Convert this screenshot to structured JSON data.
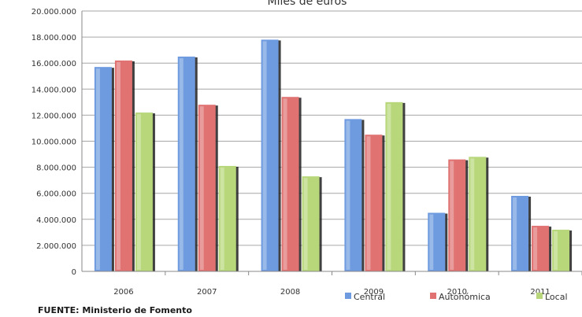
{
  "chart_data": {
    "type": "bar",
    "title": "Miles de euros",
    "source": "FUENTE: Ministerio de Fomento",
    "categories": [
      "2006",
      "2007",
      "2008",
      "2009",
      "2010",
      "2011"
    ],
    "series": [
      {
        "name": "Central",
        "color": "#6e9be0",
        "values": [
          15700000,
          16500000,
          17800000,
          11700000,
          4500000,
          5800000
        ]
      },
      {
        "name": "Autonómica",
        "color": "#e07272",
        "values": [
          16200000,
          12800000,
          13400000,
          10500000,
          8600000,
          3500000
        ]
      },
      {
        "name": "Local",
        "color": "#b7d77a",
        "values": [
          12200000,
          8100000,
          7300000,
          13000000,
          8800000,
          3200000
        ]
      }
    ],
    "ylim": [
      0,
      20000000
    ],
    "yticks": [
      {
        "value": 0,
        "label": "0"
      },
      {
        "value": 2000000,
        "label": "2.000.000"
      },
      {
        "value": 4000000,
        "label": "4.000.000"
      },
      {
        "value": 6000000,
        "label": "6.000.000"
      },
      {
        "value": 8000000,
        "label": "8.000.000"
      },
      {
        "value": 10000000,
        "label": "10.000.000"
      },
      {
        "value": 12000000,
        "label": "12.000.000"
      },
      {
        "value": 14000000,
        "label": "14.000.000"
      },
      {
        "value": 16000000,
        "label": "16.000.000"
      },
      {
        "value": 18000000,
        "label": "18.000.000"
      },
      {
        "value": 20000000,
        "label": "20.000.000"
      }
    ],
    "grid": true,
    "legend_position": "bottom-right"
  }
}
